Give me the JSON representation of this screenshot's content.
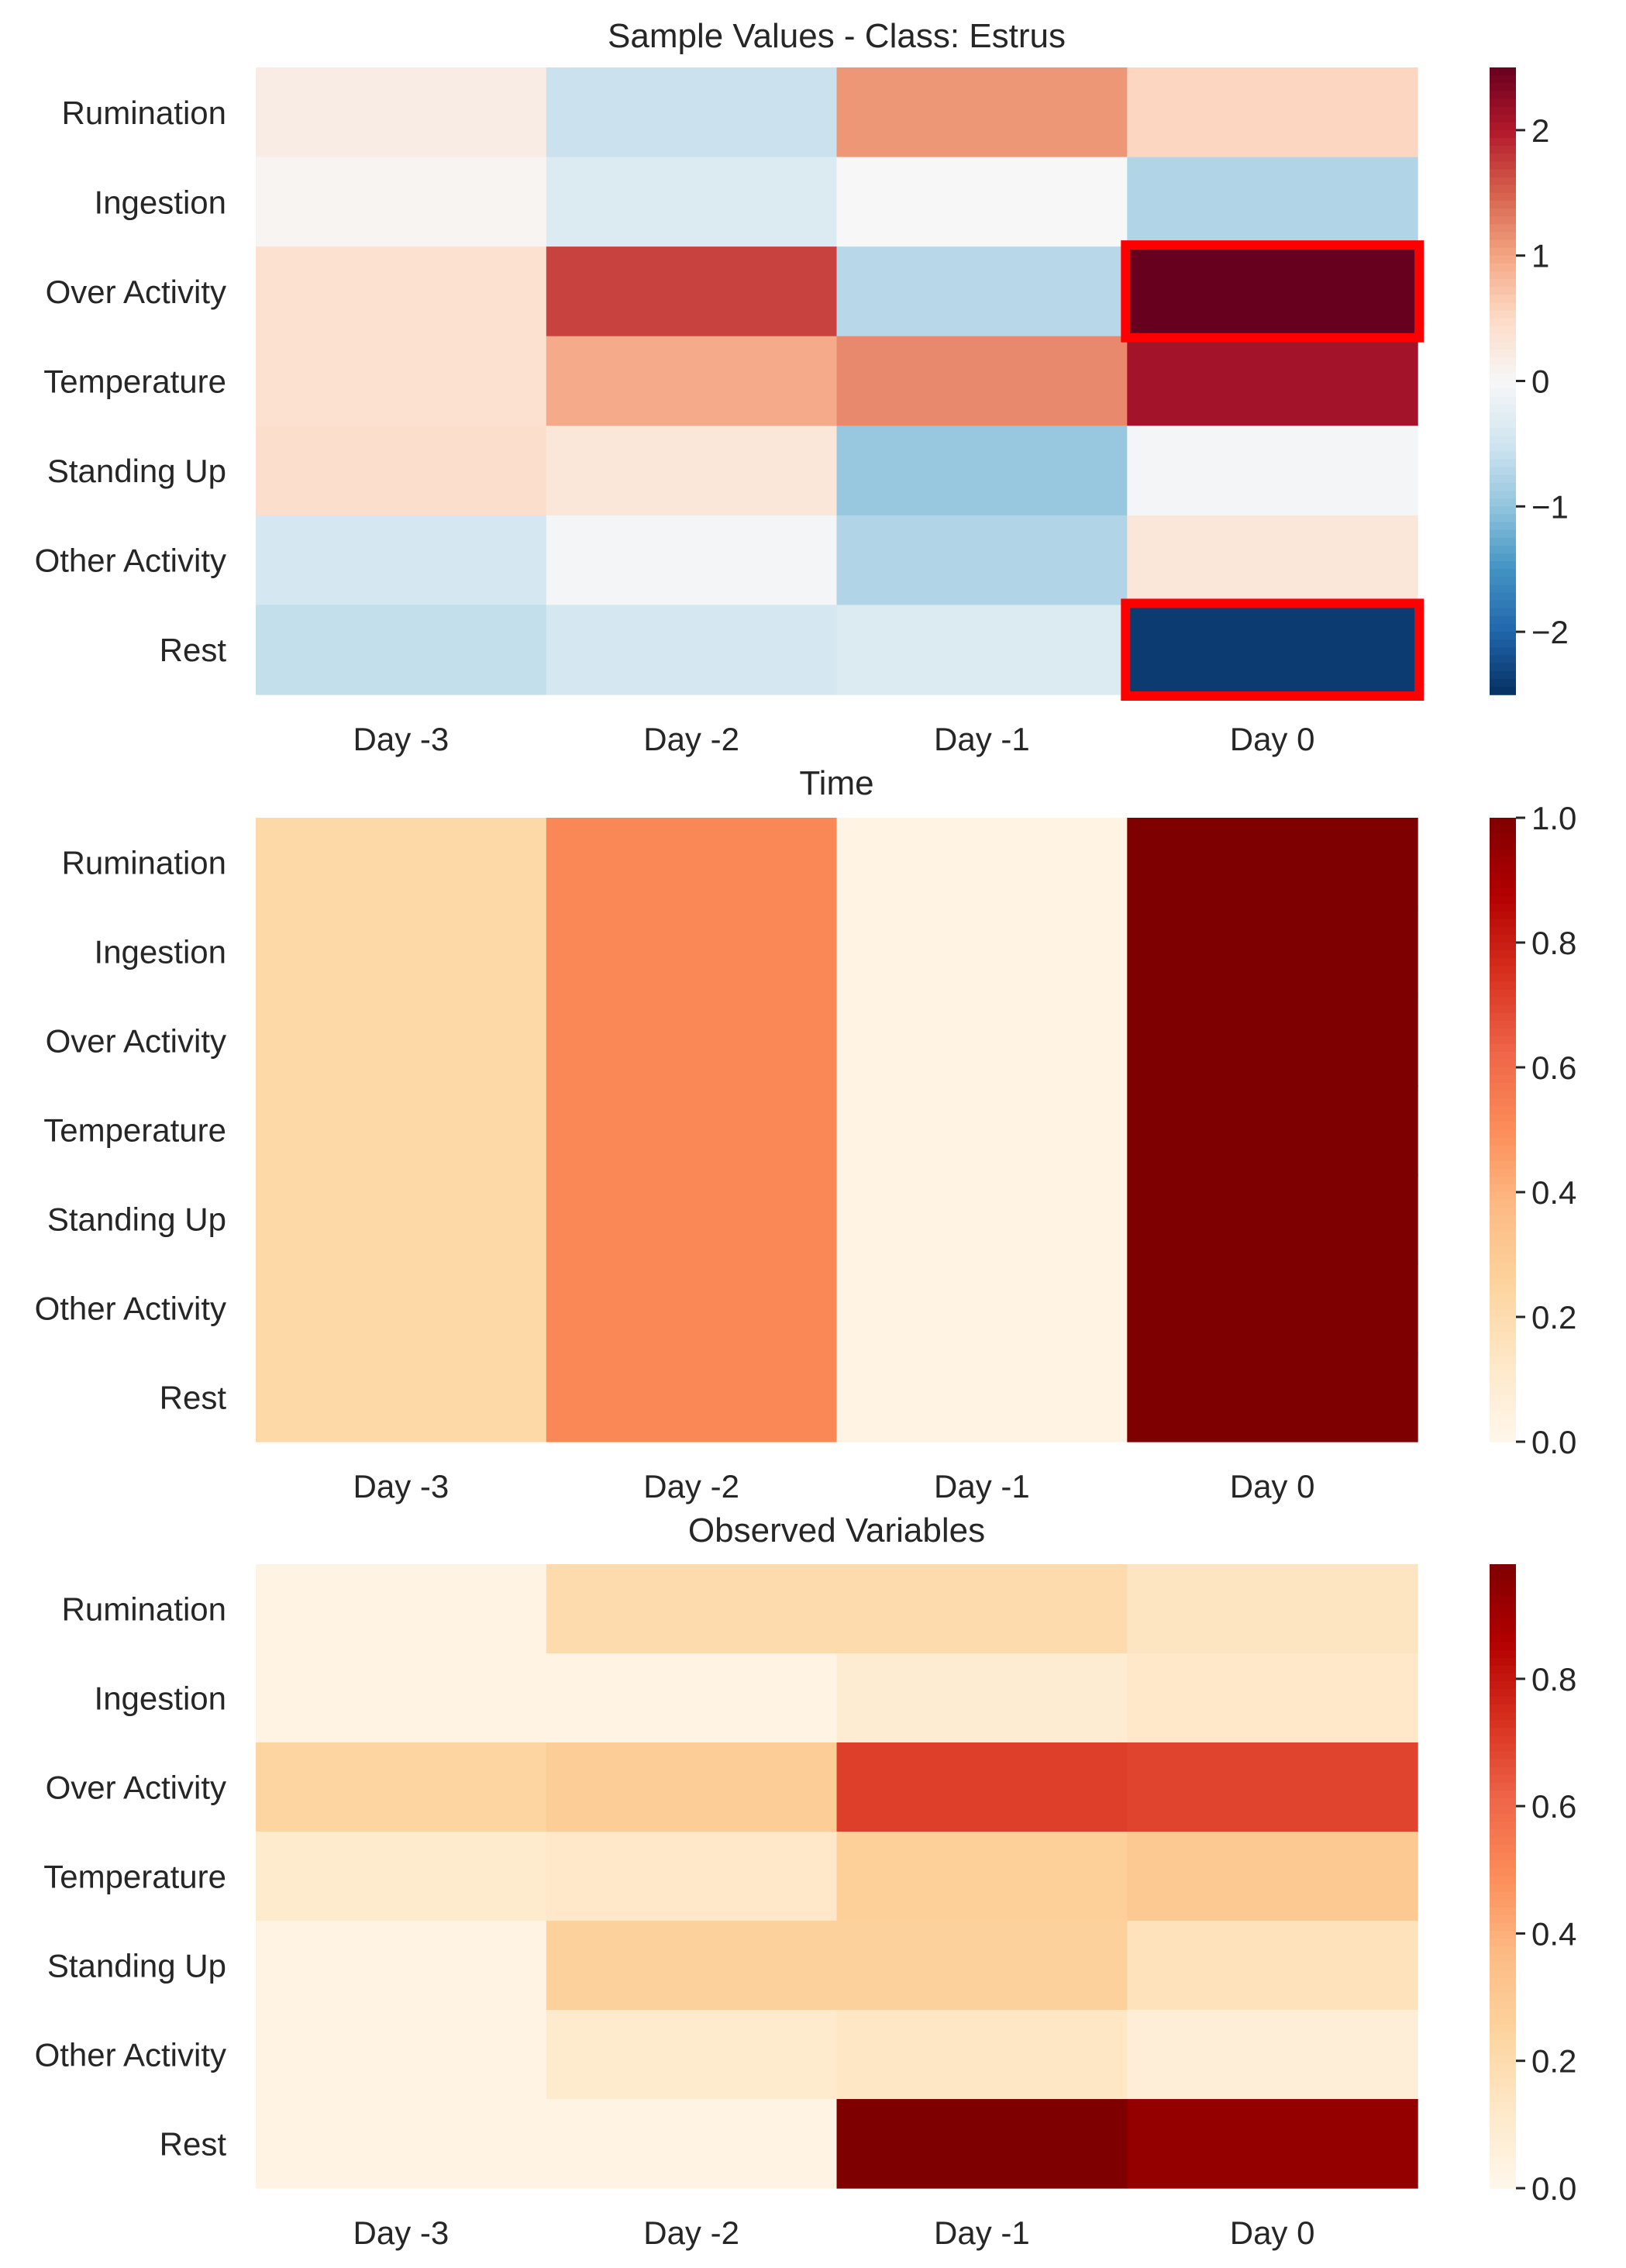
{
  "chart_data": [
    {
      "type": "heatmap",
      "title": "Sample Values - Class: Estrus",
      "xlabel": "Time",
      "ylabel": "",
      "rows": [
        "Rumination",
        "Ingestion",
        "Over Activity",
        "Temperature",
        "Standing Up",
        "Other Activity",
        "Rest"
      ],
      "columns": [
        "Day -3",
        "Day -2",
        "Day -1",
        "Day 0"
      ],
      "values": [
        [
          0.2,
          -0.55,
          1.1,
          0.55
        ],
        [
          0.05,
          -0.35,
          0.0,
          -0.75
        ],
        [
          0.4,
          1.7,
          -0.7,
          2.5
        ],
        [
          0.4,
          0.95,
          1.2,
          2.1
        ],
        [
          0.45,
          0.3,
          -0.95,
          -0.05
        ],
        [
          -0.45,
          -0.05,
          -0.75,
          0.3
        ],
        [
          -0.6,
          -0.45,
          -0.35,
          -2.4
        ]
      ],
      "colormap": "diverging-blue-red",
      "vmin": -2.5,
      "vmax": 2.5,
      "colorbar_ticks": [
        2,
        1,
        0,
        -1,
        -2
      ],
      "colorbar_tick_labels": [
        "2",
        "1",
        "0",
        "−1",
        "−2"
      ],
      "highlighted_cells": [
        {
          "row": "Over Activity",
          "column": "Day 0"
        },
        {
          "row": "Rest",
          "column": "Day 0"
        }
      ],
      "highlight_color": "#ff0000"
    },
    {
      "type": "heatmap",
      "title": "",
      "xlabel": "Observed Variables",
      "ylabel": "",
      "rows": [
        "Rumination",
        "Ingestion",
        "Over Activity",
        "Temperature",
        "Standing Up",
        "Other Activity",
        "Rest"
      ],
      "columns": [
        "Day -3",
        "Day -2",
        "Day -1",
        "Day 0"
      ],
      "values": [
        [
          0.22,
          0.52,
          0.03,
          1.0
        ],
        [
          0.22,
          0.52,
          0.03,
          1.0
        ],
        [
          0.22,
          0.52,
          0.03,
          1.0
        ],
        [
          0.22,
          0.52,
          0.03,
          1.0
        ],
        [
          0.22,
          0.52,
          0.03,
          1.0
        ],
        [
          0.22,
          0.52,
          0.03,
          1.0
        ],
        [
          0.22,
          0.52,
          0.03,
          1.0
        ]
      ],
      "colormap": "sequential-orange-red",
      "vmin": 0.0,
      "vmax": 1.0,
      "colorbar_ticks": [
        1.0,
        0.8,
        0.6,
        0.4,
        0.2,
        0.0
      ],
      "colorbar_tick_labels": [
        "1.0",
        "0.8",
        "0.6",
        "0.4",
        "0.2",
        "0.0"
      ]
    },
    {
      "type": "heatmap",
      "title": "",
      "xlabel": "",
      "ylabel": "",
      "rows": [
        "Rumination",
        "Ingestion",
        "Over Activity",
        "Temperature",
        "Standing Up",
        "Other Activity",
        "Rest"
      ],
      "columns": [
        "Day -3",
        "Day -2",
        "Day -1",
        "Day 0"
      ],
      "values": [
        [
          0.03,
          0.2,
          0.2,
          0.14
        ],
        [
          0.03,
          0.03,
          0.09,
          0.12
        ],
        [
          0.24,
          0.28,
          0.7,
          0.69
        ],
        [
          0.11,
          0.12,
          0.27,
          0.3
        ],
        [
          0.03,
          0.26,
          0.26,
          0.16
        ],
        [
          0.03,
          0.11,
          0.13,
          0.07
        ],
        [
          0.03,
          0.03,
          0.98,
          0.93
        ]
      ],
      "colormap": "sequential-orange-red",
      "vmin": 0.0,
      "vmax": 0.98,
      "colorbar_ticks": [
        0.8,
        0.6,
        0.4,
        0.2,
        0.0
      ],
      "colorbar_tick_labels": [
        "0.8",
        "0.6",
        "0.4",
        "0.2",
        "0.0"
      ]
    }
  ],
  "colors": {
    "text": "#262626",
    "highlight": "#ff0000",
    "background": "#ffffff"
  }
}
